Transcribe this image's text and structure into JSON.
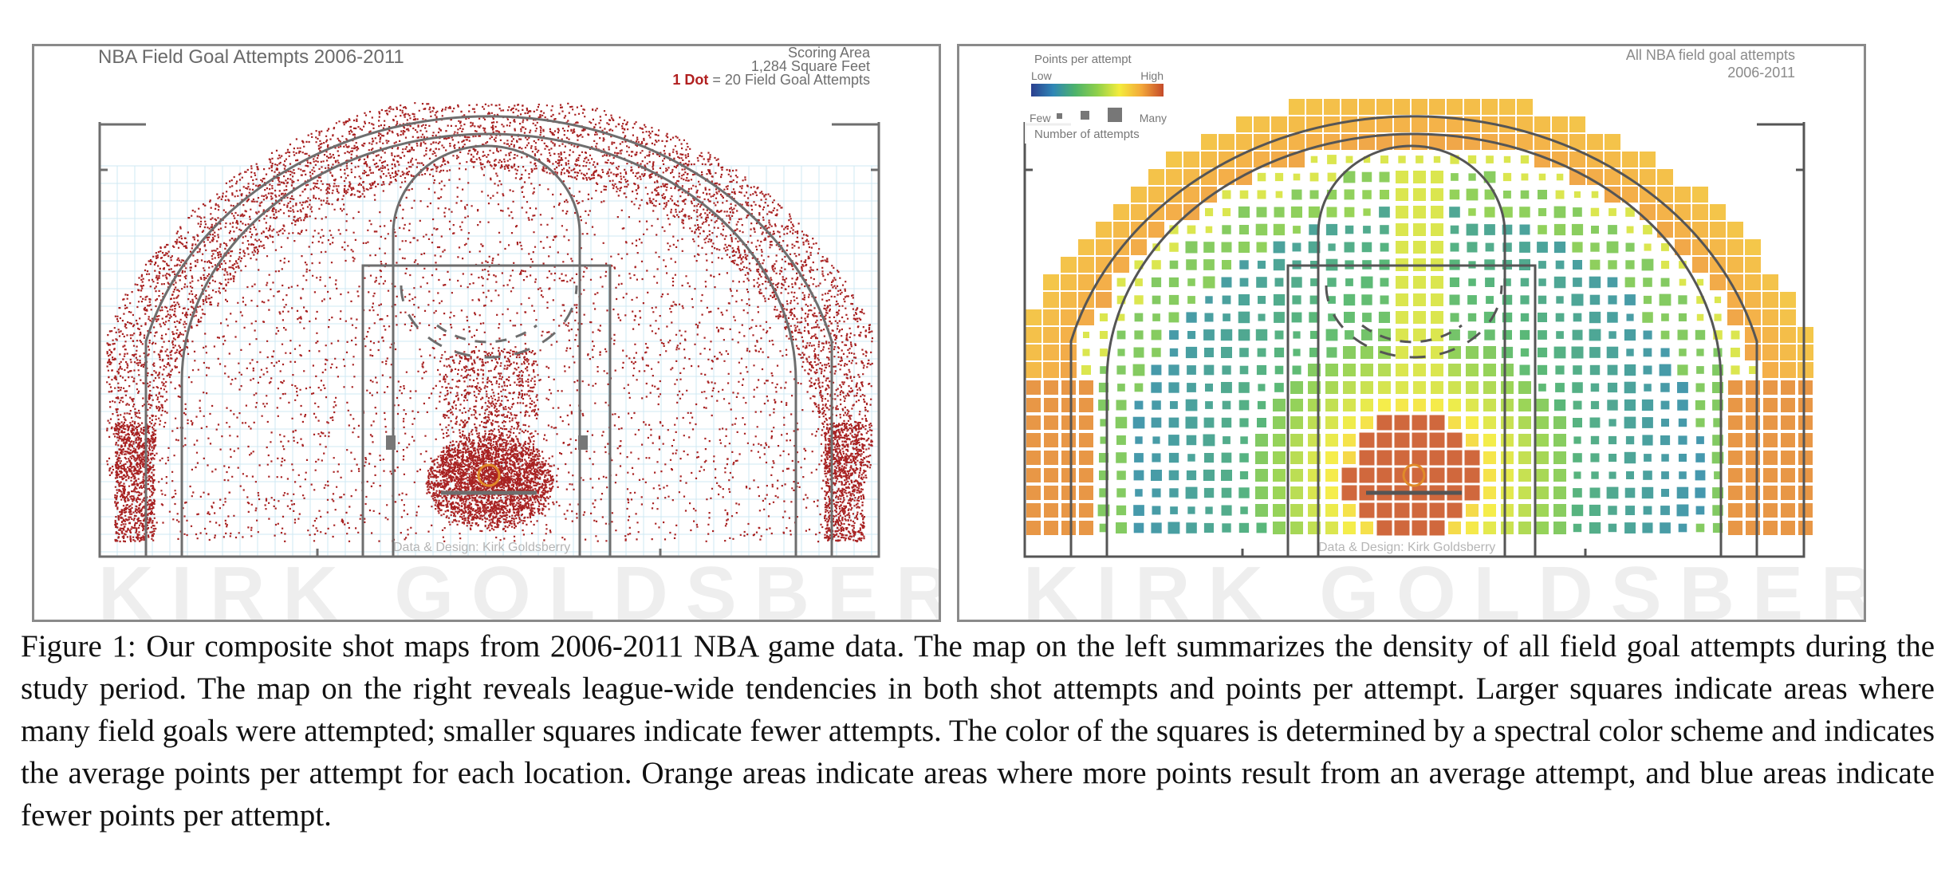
{
  "left_panel": {
    "title": "NBA Field Goal Attempts 2006-2011",
    "scoring_area_label": "Scoring Area",
    "scoring_area_value": "1,284 Square Feet",
    "dot_key_emph": "1 Dot",
    "dot_key_rest": " = 20 Field Goal Attempts",
    "credit": "Data & Design: Kirk Goldsberry",
    "watermark": "KIRK GOLDSBERRY",
    "dot_color": "#a82222"
  },
  "right_panel": {
    "title_line1": "All NBA field goal attempts",
    "title_line2": "2006-2011",
    "legend": {
      "title": "Points per attempt",
      "low": "Low",
      "high": "High",
      "few": "Few",
      "many": "Many",
      "count_label": "Number of attempts"
    },
    "credit": "Data & Design: Kirk Goldsberry",
    "watermark": "KIRK GOLDSBERRY",
    "color_scale": [
      "#2b3f8f",
      "#2f86b6",
      "#4db36b",
      "#8fd04a",
      "#f4ec3c",
      "#f3a83a",
      "#c44a2a"
    ]
  },
  "caption": "Figure 1: Our composite shot maps from 2006-2011 NBA game data. The map on the left summarizes the density of all field goal attempts during the study period. The map on the right reveals league-wide tendencies in both shot attempts and points per attempt. Larger squares indicate areas where many field goals were attempted; smaller squares indicate fewer attempts. The color of the squares is determined by a spectral color scheme and indicates the average points per attempt for each location. Orange areas indicate areas where more points result from an average attempt, and blue areas indicate fewer points per attempt."
}
